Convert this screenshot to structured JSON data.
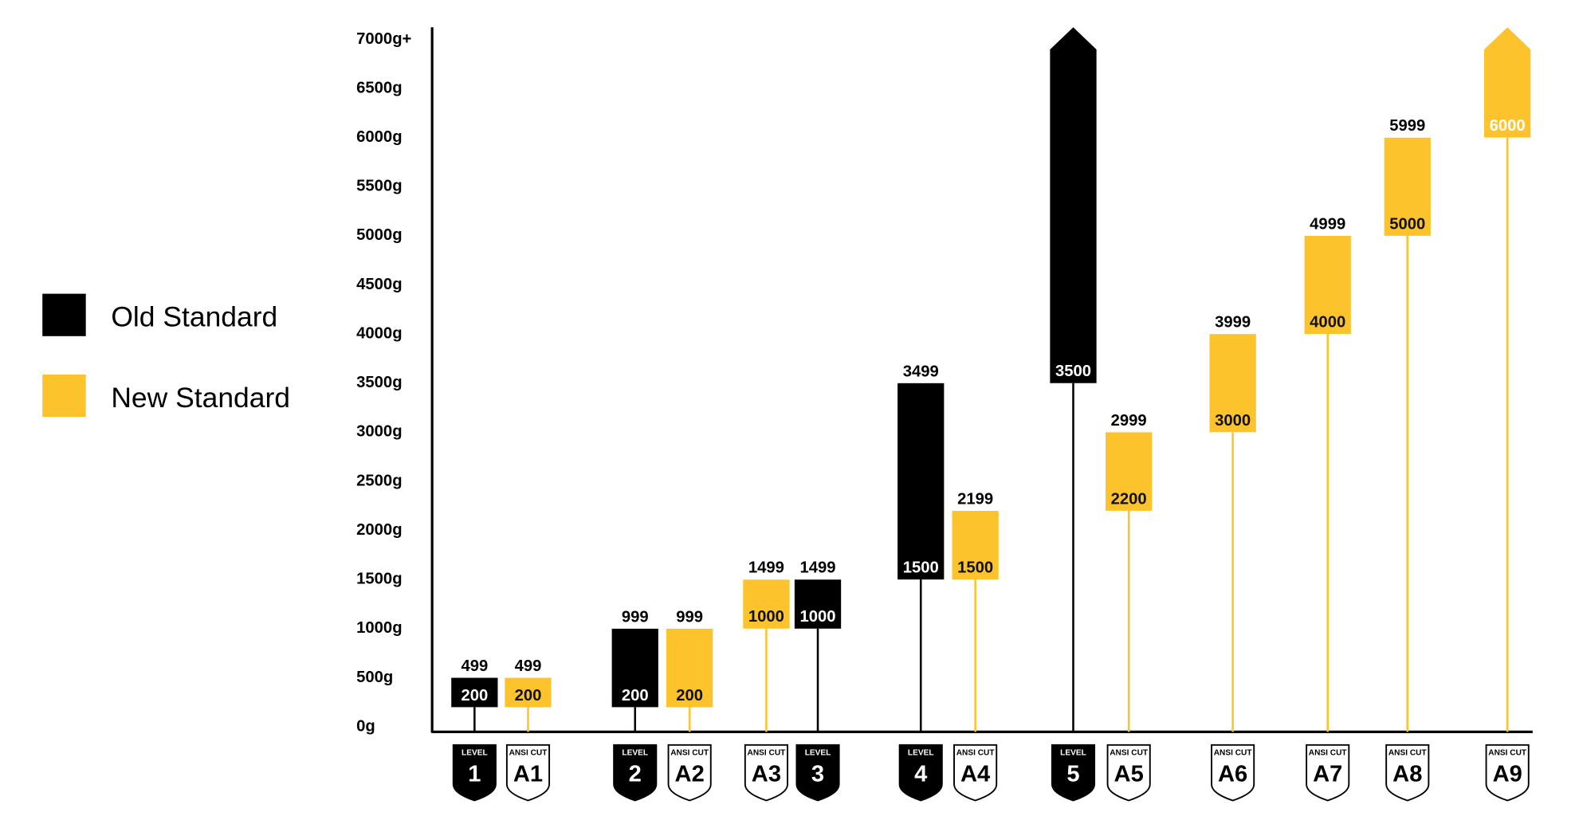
{
  "chart_data": {
    "type": "range-bar",
    "categories": [
      "1",
      "A1",
      "2",
      "A2",
      "A3",
      "3",
      "4",
      "A4",
      "5",
      "A5",
      "A6",
      "A7",
      "A8",
      "A9"
    ],
    "category_headers": [
      "LEVEL",
      "ANSI CUT",
      "LEVEL",
      "ANSI CUT",
      "ANSI CUT",
      "LEVEL",
      "LEVEL",
      "ANSI CUT",
      "LEVEL",
      "ANSI CUT",
      "ANSI CUT",
      "ANSI CUT",
      "ANSI CUT",
      "ANSI CUT"
    ],
    "series": [
      {
        "name": "Old Standard",
        "color": "#000000",
        "low": [
          200,
          null,
          200,
          null,
          null,
          1000,
          1500,
          null,
          3500,
          null,
          null,
          null,
          null,
          null
        ],
        "high": [
          499,
          null,
          999,
          null,
          null,
          1499,
          3499,
          null,
          null,
          null,
          null,
          null,
          null,
          null
        ]
      },
      {
        "name": "New Standard",
        "color": "#fdc32c",
        "low": [
          null,
          200,
          null,
          200,
          1000,
          null,
          null,
          1500,
          null,
          2200,
          3000,
          4000,
          5000,
          6000
        ],
        "high": [
          null,
          499,
          null,
          999,
          1499,
          null,
          null,
          2199,
          null,
          2999,
          3999,
          4999,
          5999,
          null
        ]
      }
    ],
    "ylim": [
      0,
      7000
    ],
    "yticks": [
      {
        "value": 0,
        "label": "0g"
      },
      {
        "value": 500,
        "label": "500g"
      },
      {
        "value": 1000,
        "label": "1000g"
      },
      {
        "value": 1500,
        "label": "1500g"
      },
      {
        "value": 2000,
        "label": "2000g"
      },
      {
        "value": 2500,
        "label": "2500g"
      },
      {
        "value": 3000,
        "label": "3000g"
      },
      {
        "value": 3500,
        "label": "3500g"
      },
      {
        "value": 4000,
        "label": "4000g"
      },
      {
        "value": 4500,
        "label": "4500g"
      },
      {
        "value": 5000,
        "label": "5000g"
      },
      {
        "value": 5500,
        "label": "5500g"
      },
      {
        "value": 6000,
        "label": "6000g"
      },
      {
        "value": 6500,
        "label": "6500g"
      },
      {
        "value": 7000,
        "label": "7000g+"
      }
    ]
  }
}
